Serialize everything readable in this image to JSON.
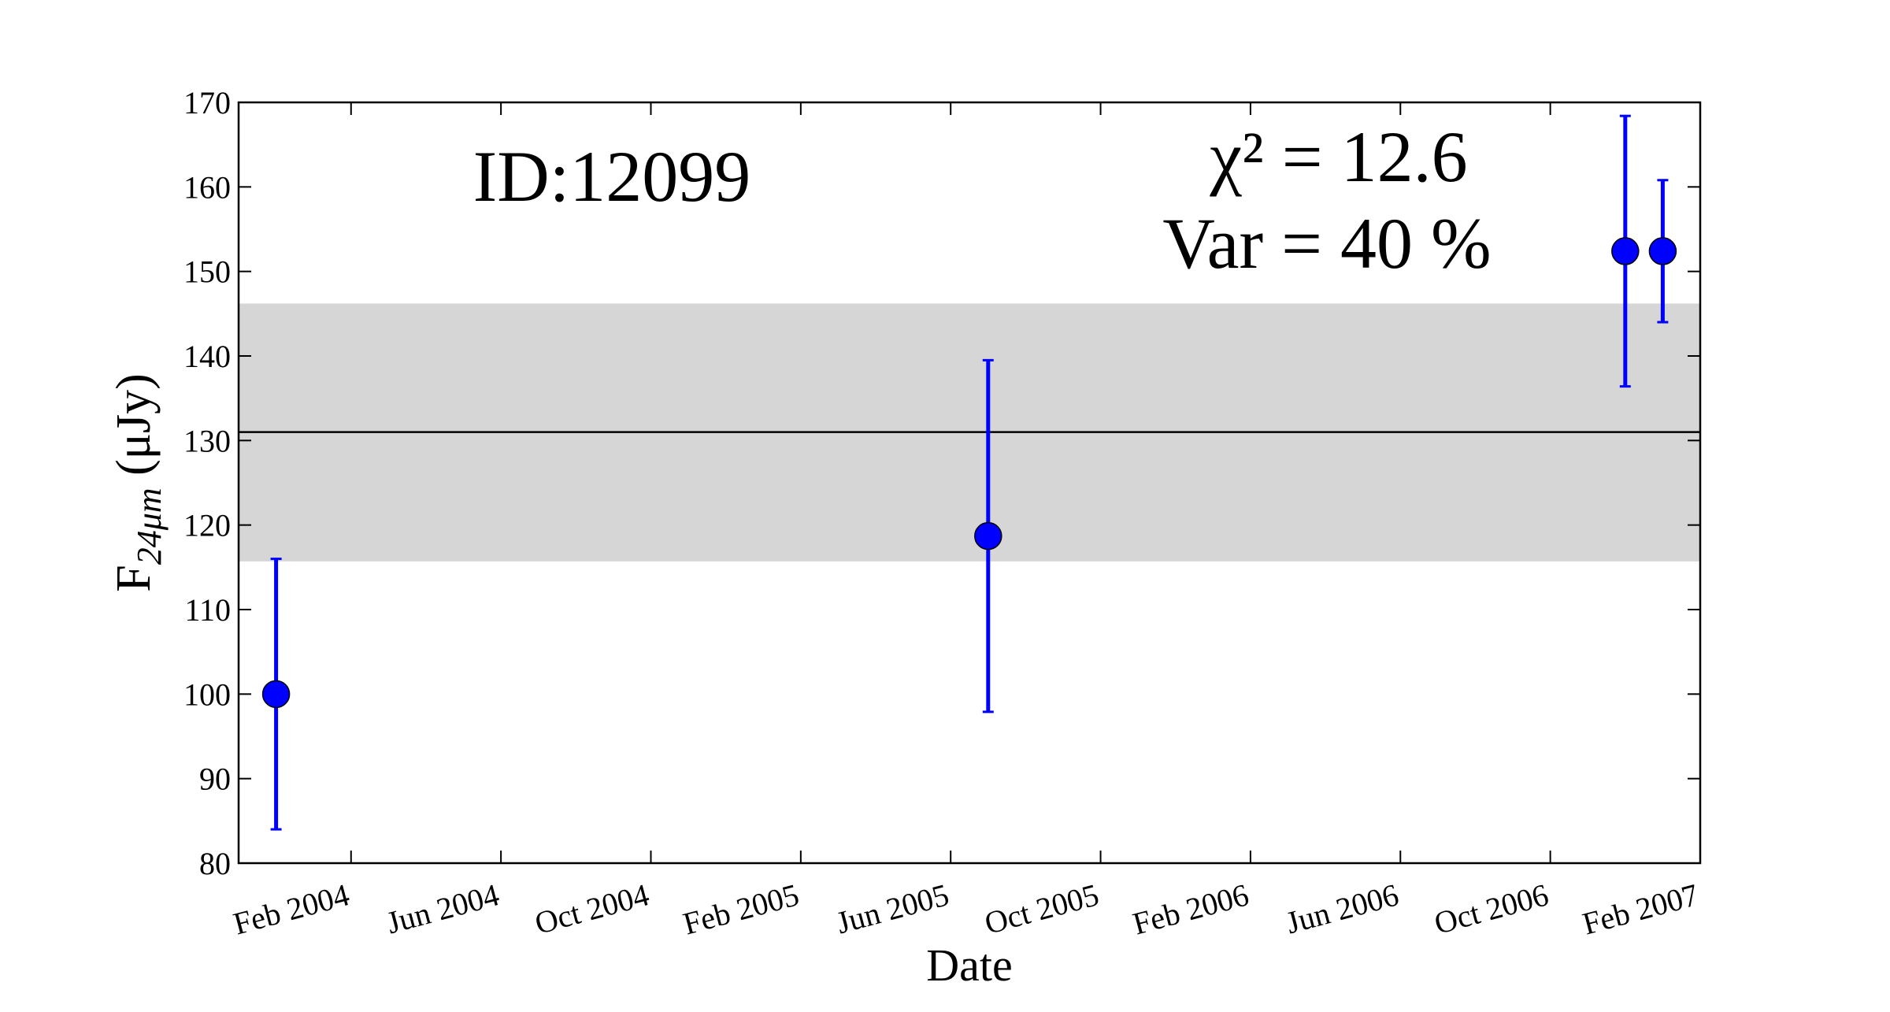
{
  "chart_data": {
    "type": "scatter",
    "title": "ID:12099",
    "annotations": [
      "χ² = 12.6",
      "Var = 40 %"
    ],
    "xlabel": "Date",
    "ylabel": {
      "main": "F",
      "sub": "24μm",
      "unit": " (μJy)"
    },
    "series": [
      {
        "name": "F24",
        "color": "#0000ff",
        "x": [
          "2003-12",
          "2005-07",
          "2006-12",
          "2007-01"
        ],
        "values": [
          100,
          118.7,
          152.4,
          152.4
        ],
        "errors": [
          16,
          20.8,
          16,
          8.4
        ]
      }
    ],
    "mean": 131,
    "band": [
      115.7,
      146.2
    ],
    "band_color": "#d6d6d6",
    "xlim": [
      "2003-11",
      "2007-02"
    ],
    "xticks": [
      {
        "value": "2004-02",
        "label": "Feb 2004"
      },
      {
        "value": "2004-06",
        "label": "Jun 2004"
      },
      {
        "value": "2004-10",
        "label": "Oct 2004"
      },
      {
        "value": "2005-02",
        "label": "Feb 2005"
      },
      {
        "value": "2005-06",
        "label": "Jun 2005"
      },
      {
        "value": "2005-10",
        "label": "Oct 2005"
      },
      {
        "value": "2006-02",
        "label": "Feb 2006"
      },
      {
        "value": "2006-06",
        "label": "Jun 2006"
      },
      {
        "value": "2006-10",
        "label": "Oct 2006"
      },
      {
        "value": "2007-02",
        "label": "Feb 2007"
      }
    ],
    "ylim": [
      80,
      170
    ],
    "yticks": [
      80,
      90,
      100,
      110,
      120,
      130,
      140,
      150,
      160,
      170
    ]
  }
}
